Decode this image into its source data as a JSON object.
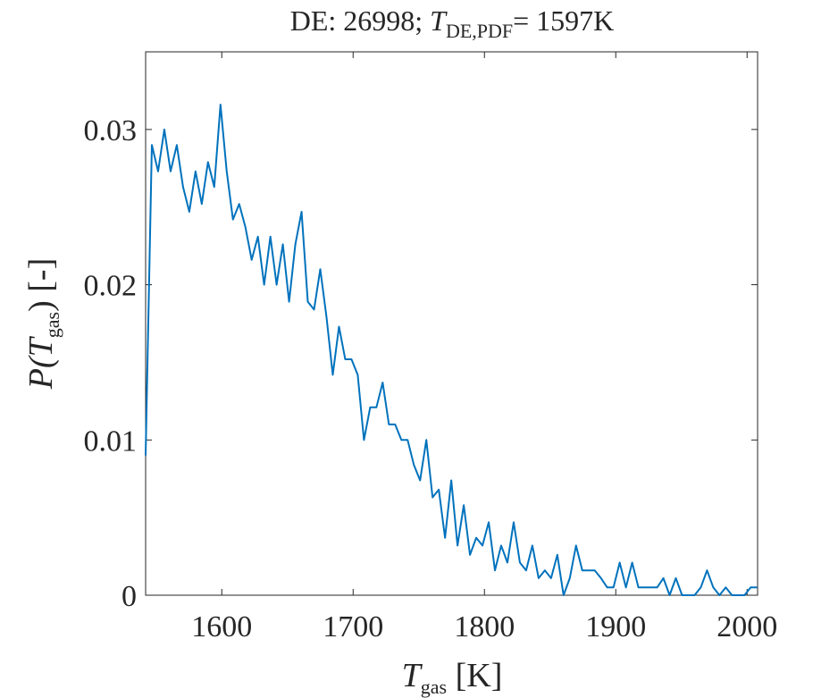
{
  "chart_data": {
    "type": "line",
    "title": [
      "DE: 26998; ",
      "T",
      "DE,PDF",
      "= 1597K"
    ],
    "x_label": [
      "T",
      "gas",
      " [K]"
    ],
    "y_label": [
      "P(",
      "T",
      "gas",
      ") [-]"
    ],
    "x": [
      1542,
      1546.75,
      1551.5,
      1556.25,
      1561,
      1565.75,
      1570.5,
      1575.25,
      1580,
      1584.75,
      1589.5,
      1594.25,
      1599,
      1603.75,
      1608.5,
      1613.25,
      1618,
      1622.75,
      1627.5,
      1632.25,
      1637,
      1641.75,
      1646.5,
      1651.25,
      1656,
      1660.75,
      1665.5,
      1670.25,
      1675,
      1679.75,
      1684.5,
      1689.25,
      1694,
      1698.75,
      1703.5,
      1708.25,
      1713,
      1717.75,
      1722.5,
      1727.25,
      1732,
      1736.75,
      1741.5,
      1746.25,
      1751,
      1755.75,
      1760.5,
      1765.25,
      1770,
      1774.75,
      1779.5,
      1784.25,
      1789,
      1793.75,
      1798.5,
      1803.25,
      1808,
      1812.75,
      1817.5,
      1822.25,
      1827,
      1831.75,
      1836.5,
      1841.25,
      1846,
      1850.75,
      1855.5,
      1860.25,
      1865,
      1869.75,
      1874.5,
      1879.25,
      1884,
      1888.75,
      1893.5,
      1898.25,
      1903,
      1907.75,
      1912.5,
      1917.25,
      1922,
      1926.75,
      1931.5,
      1936.25,
      1941,
      1945.75,
      1950.5,
      1955.25,
      1960,
      1964.75,
      1969.5,
      1974.25,
      1979,
      1983.75,
      1988.5,
      1993.25,
      1998,
      2002.75,
      2007.5
    ],
    "series": [
      {
        "color": "#0072bd",
        "values": [
          0.009,
          0.029,
          0.0273,
          0.03,
          0.0273,
          0.029,
          0.0263,
          0.0247,
          0.0273,
          0.0252,
          0.0279,
          0.0263,
          0.0316,
          0.0273,
          0.0242,
          0.0252,
          0.0237,
          0.0216,
          0.0231,
          0.02,
          0.0231,
          0.02,
          0.0226,
          0.0189,
          0.0226,
          0.0247,
          0.0189,
          0.0184,
          0.021,
          0.0179,
          0.0142,
          0.0173,
          0.0152,
          0.0152,
          0.0142,
          0.01,
          0.0121,
          0.0121,
          0.0137,
          0.011,
          0.011,
          0.01,
          0.01,
          0.0084,
          0.0074,
          0.01,
          0.0063,
          0.0068,
          0.0037,
          0.0074,
          0.0032,
          0.0058,
          0.0026,
          0.0037,
          0.0032,
          0.0047,
          0.0016,
          0.0032,
          0.0021,
          0.0047,
          0.0021,
          0.0016,
          0.0032,
          0.0011,
          0.0016,
          0.0011,
          0.0026,
          0,
          0.0011,
          0.0032,
          0.0016,
          0.0016,
          0.0016,
          0.0011,
          0.0005,
          0.0005,
          0.0021,
          0.0005,
          0.0021,
          0.0005,
          0.0005,
          0.0005,
          0.0005,
          0.0011,
          0,
          0.0011,
          0,
          0,
          0,
          0.0005,
          0.0016,
          0.0005,
          0,
          0.0005,
          0,
          0,
          0,
          0.0005,
          0.0005
        ]
      }
    ],
    "xlim": [
      1542,
      2008
    ],
    "xticks": [
      1600,
      1700,
      1800,
      1900,
      2000
    ],
    "ylim": [
      0,
      0.035
    ],
    "yticks": [
      0,
      0.01,
      0.02,
      0.03
    ]
  }
}
